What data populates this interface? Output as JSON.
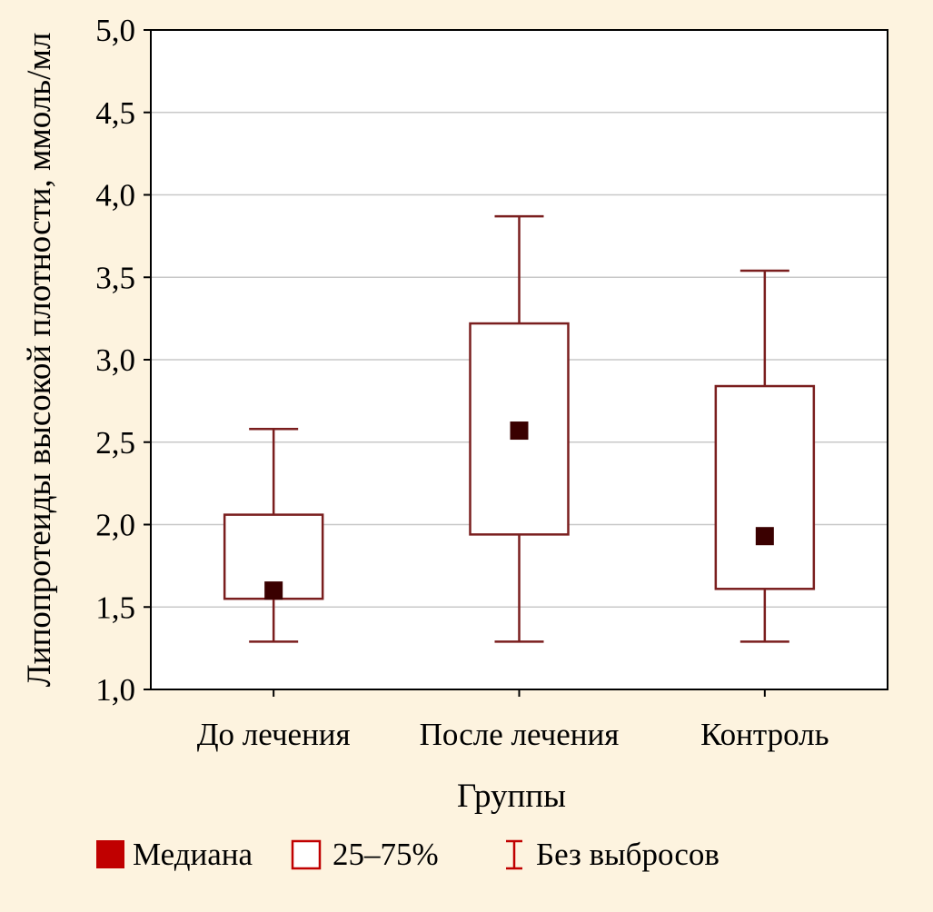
{
  "chart_data": {
    "type": "boxplot",
    "xlabel": "Группы",
    "ylabel": "Липопротеиды высокой плотности, ммоль/мл",
    "ylim": [
      1.0,
      5.0
    ],
    "yticks": [
      1.0,
      1.5,
      2.0,
      2.5,
      3.0,
      3.5,
      4.0,
      4.5,
      5.0
    ],
    "ytick_labels": [
      "1,0",
      "1,5",
      "2,0",
      "2,5",
      "3,0",
      "3,5",
      "4,0",
      "4,5",
      "5,0"
    ],
    "grid": true,
    "categories": [
      "До лечения",
      "После лечения",
      "Контроль"
    ],
    "boxes": [
      {
        "category": "До лечения",
        "min": 1.29,
        "q1": 1.55,
        "median": 1.6,
        "q3": 2.06,
        "max": 2.58
      },
      {
        "category": "После лечения",
        "min": 1.29,
        "q1": 1.94,
        "median": 2.57,
        "q3": 3.22,
        "max": 3.87
      },
      {
        "category": "Контроль",
        "min": 1.29,
        "q1": 1.61,
        "median": 1.93,
        "q3": 2.84,
        "max": 3.54
      }
    ],
    "legend": {
      "position": "bottom",
      "items": [
        {
          "label": "Медиана",
          "symbol": "filled-square"
        },
        {
          "label": "25–75%",
          "symbol": "open-square"
        },
        {
          "label": "Без выбросов",
          "symbol": "whisker"
        }
      ]
    },
    "colors": {
      "background": "#fdf3df",
      "plot_background": "#ffffff",
      "box_stroke": "#7a1e1e",
      "median_fill": "#3a0000",
      "legend_fill": "#c00000",
      "grid": "#c8c8c8",
      "axis": "#000000"
    }
  }
}
